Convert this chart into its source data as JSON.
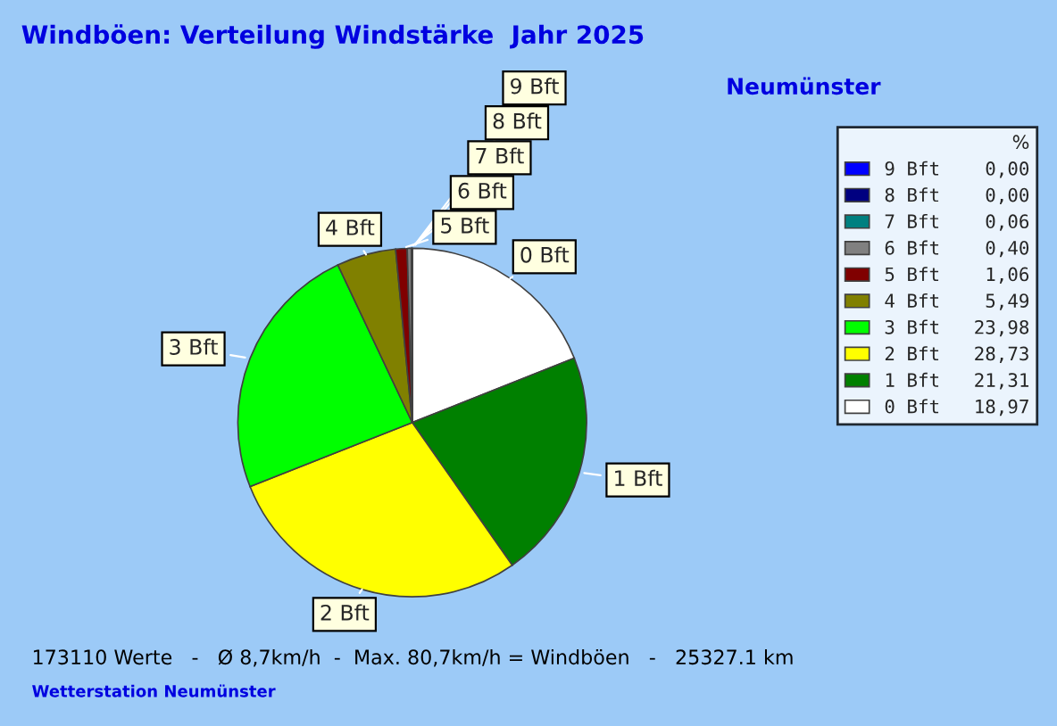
{
  "chart_data": {
    "type": "pie",
    "title": "Windböen: Verteilung Windstärke  Jahr 2025",
    "subtitle": "Neumünster",
    "categories": [
      "0 Bft",
      "1 Bft",
      "2 Bft",
      "3 Bft",
      "4 Bft",
      "5 Bft",
      "6 Bft",
      "7 Bft",
      "8 Bft",
      "9 Bft"
    ],
    "values": [
      18.97,
      21.31,
      28.73,
      23.98,
      5.49,
      1.06,
      0.4,
      0.06,
      0.0,
      0.0
    ],
    "value_labels": [
      "18,97",
      "21,31",
      "28,73",
      "23,98",
      "5,49",
      "1,06",
      "0,40",
      "0,06",
      "0,00",
      "0,00"
    ],
    "colors": [
      "#ffffff",
      "#008000",
      "#ffff00",
      "#00ff00",
      "#808000",
      "#800000",
      "#808080",
      "#008080",
      "#000080",
      "#0000ff"
    ],
    "legend": "right",
    "legend_title": "%",
    "annotations": [
      "173110 Werte   -   Ø 8,7km/h  -  Max. 80,7km/h = Windböen   -   25327.1 km",
      "Wetterstation Neumünster"
    ]
  }
}
